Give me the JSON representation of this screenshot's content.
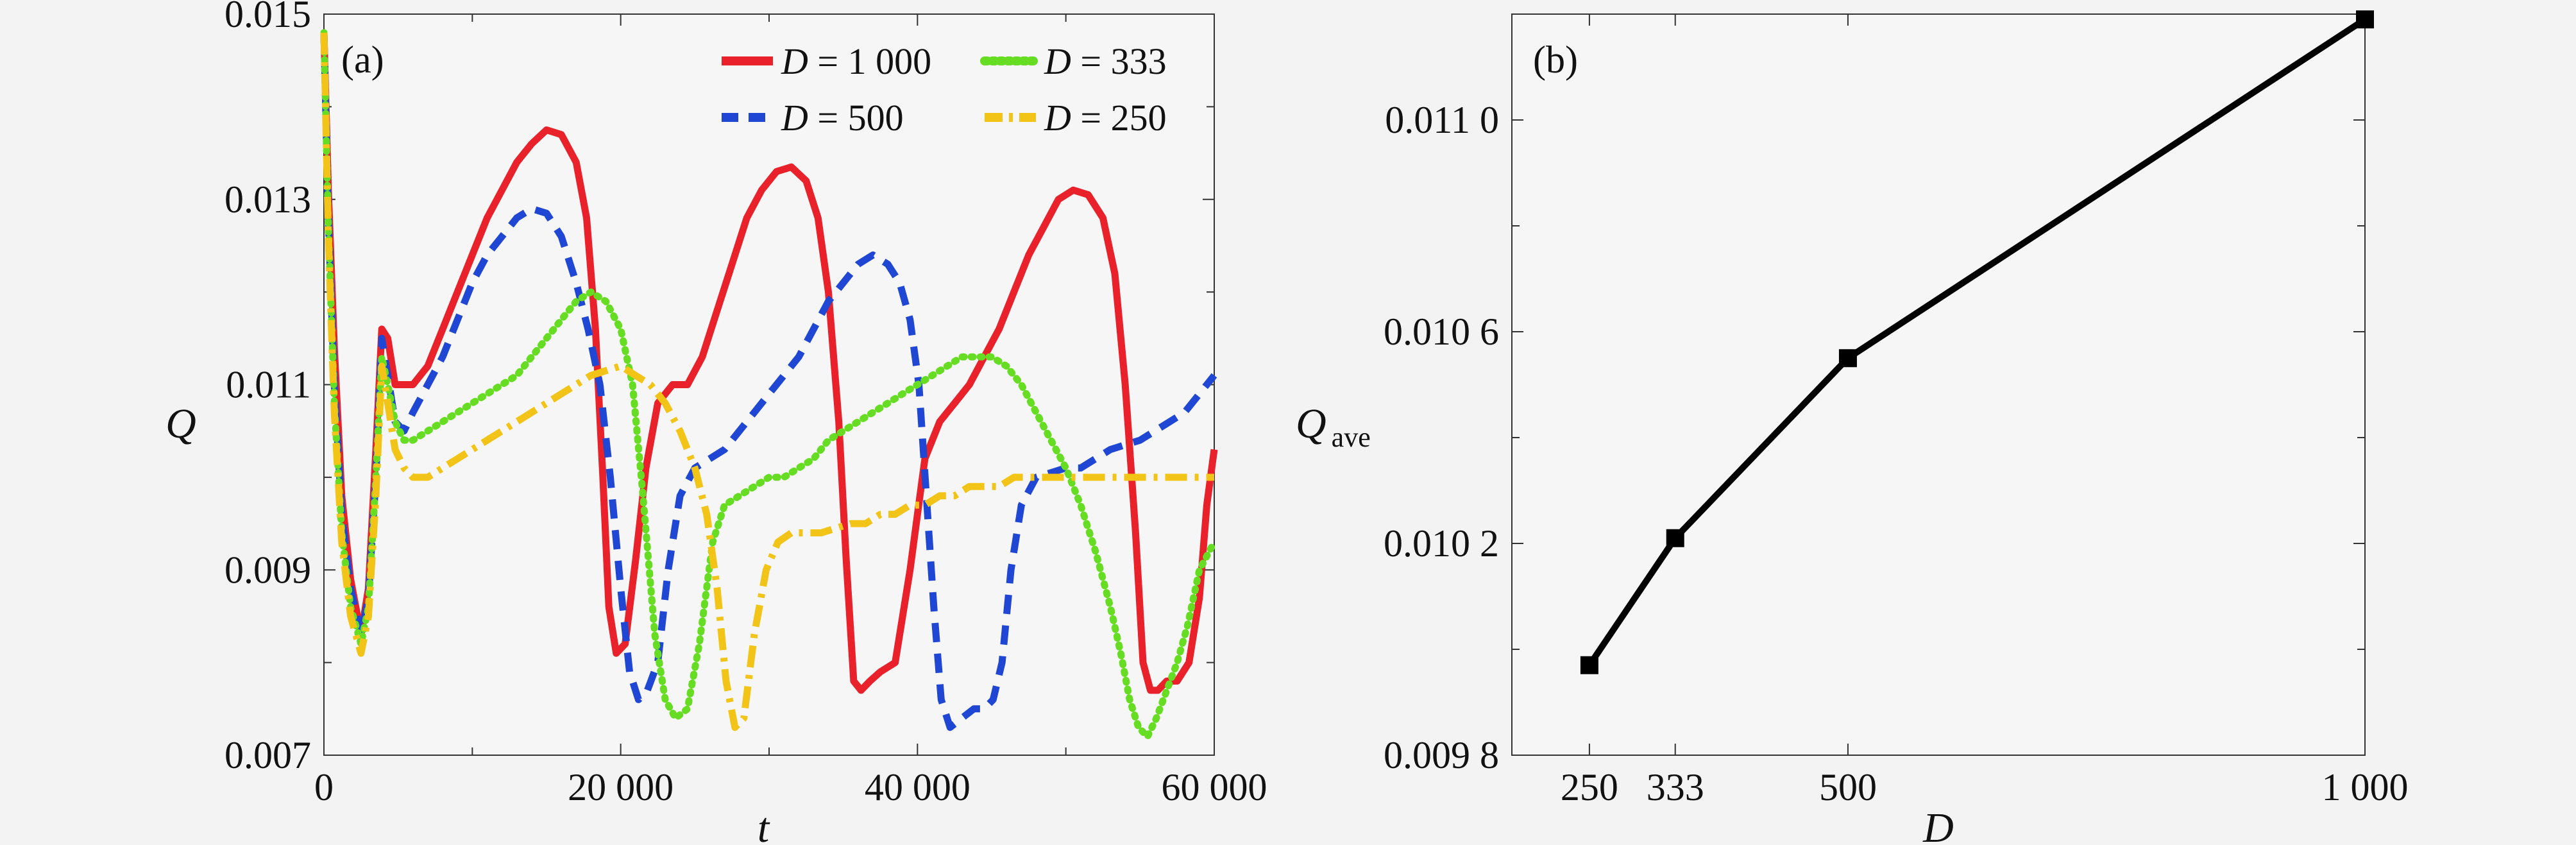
{
  "chart_data": [
    {
      "panel_label": "(a)",
      "type": "line",
      "xlabel": "t",
      "ylabel": "Q",
      "xlim": [
        0,
        60000
      ],
      "ylim": [
        0.007,
        0.015
      ],
      "x_ticks": [
        0,
        20000,
        40000,
        60000
      ],
      "x_tick_labels": [
        "0",
        "20 000",
        "40 000",
        "60 000"
      ],
      "y_ticks": [
        0.007,
        0.009,
        0.011,
        0.013,
        0.015
      ],
      "y_tick_labels": [
        "0.007",
        "0.009",
        "0.011",
        "0.013",
        "0.015"
      ],
      "legend_position": "top-right",
      "series": [
        {
          "name": "D = 1 000",
          "legend_text": "= 1 000",
          "color": "#e8212a",
          "dash": "solid",
          "x": [
            0,
            300,
            700,
            1200,
            1800,
            2500,
            3000,
            3500,
            3900,
            4300,
            4800,
            5400,
            6000,
            7000,
            8000,
            9000,
            10000,
            11000,
            12000,
            13000,
            14000,
            15000,
            16000,
            17000,
            17700,
            18300,
            18800,
            19200,
            19700,
            20300,
            21000,
            21700,
            22500,
            23500,
            24500,
            25500,
            26500,
            27500,
            28500,
            29500,
            30500,
            31500,
            32500,
            33300,
            34000,
            34700,
            35200,
            35700,
            36200,
            36800,
            37500,
            38500,
            39500,
            40500,
            41500,
            42500,
            43500,
            44500,
            45500,
            46500,
            47500,
            48500,
            49500,
            50500,
            51500,
            52500,
            53300,
            54000,
            54700,
            55200,
            55700,
            56200,
            56800,
            57500,
            58300,
            59000,
            59500,
            60000
          ],
          "y": [
            0.0148,
            0.0131,
            0.0114,
            0.0098,
            0.0089,
            0.0083,
            0.0088,
            0.0103,
            0.0116,
            0.0115,
            0.011,
            0.011,
            0.011,
            0.0112,
            0.0116,
            0.012,
            0.0124,
            0.0128,
            0.0131,
            0.0134,
            0.0136,
            0.01375,
            0.0137,
            0.0134,
            0.0128,
            0.0116,
            0.01,
            0.0086,
            0.0081,
            0.0082,
            0.0091,
            0.0101,
            0.0108,
            0.011,
            0.011,
            0.0113,
            0.0118,
            0.0123,
            0.0128,
            0.0131,
            0.0133,
            0.01335,
            0.0132,
            0.0128,
            0.012,
            0.0106,
            0.0091,
            0.0078,
            0.0077,
            0.0078,
            0.0079,
            0.008,
            0.009,
            0.0102,
            0.0106,
            0.0108,
            0.011,
            0.0113,
            0.0116,
            0.012,
            0.0124,
            0.0127,
            0.013,
            0.0131,
            0.01305,
            0.0128,
            0.0122,
            0.011,
            0.0094,
            0.008,
            0.0077,
            0.0077,
            0.0078,
            0.0078,
            0.008,
            0.0087,
            0.0097,
            0.0103
          ]
        },
        {
          "name": "D = 500",
          "legend_text": "= 500",
          "color": "#1f47d4",
          "dash": "dashed",
          "x": [
            0,
            300,
            700,
            1200,
            1800,
            2500,
            3000,
            3500,
            3900,
            4300,
            4800,
            5400,
            6000,
            7000,
            8000,
            9000,
            10000,
            11000,
            12000,
            13000,
            14000,
            15000,
            16000,
            17000,
            17800,
            18600,
            19300,
            20000,
            20600,
            21200,
            21800,
            22500,
            23200,
            24000,
            25000,
            26000,
            27000,
            28000,
            29000,
            30000,
            31000,
            32000,
            33000,
            34000,
            35000,
            36000,
            37000,
            38000,
            38800,
            39500,
            40100,
            40600,
            41100,
            41600,
            42200,
            43000,
            43800,
            44500,
            45100,
            45700,
            46300,
            47000,
            48000,
            49000,
            50000,
            51000,
            52000,
            53000,
            54000,
            55000,
            56000,
            57000,
            58000,
            59000,
            60000
          ],
          "y": [
            0.0148,
            0.0128,
            0.011,
            0.0096,
            0.0088,
            0.0083,
            0.0087,
            0.01,
            0.0115,
            0.0111,
            0.0106,
            0.0105,
            0.0107,
            0.011,
            0.0113,
            0.0117,
            0.0121,
            0.0124,
            0.0126,
            0.0128,
            0.0129,
            0.01285,
            0.0126,
            0.0121,
            0.0116,
            0.011,
            0.01,
            0.0088,
            0.0079,
            0.0076,
            0.0077,
            0.008,
            0.009,
            0.0098,
            0.0101,
            0.0102,
            0.0103,
            0.0105,
            0.0107,
            0.0109,
            0.0111,
            0.0113,
            0.0116,
            0.0119,
            0.0121,
            0.0123,
            0.0124,
            0.0123,
            0.0121,
            0.0117,
            0.011,
            0.0098,
            0.0086,
            0.0076,
            0.0073,
            0.0074,
            0.0075,
            0.0075,
            0.0076,
            0.008,
            0.009,
            0.0097,
            0.01,
            0.01005,
            0.0101,
            0.0101,
            0.0102,
            0.0103,
            0.01035,
            0.0104,
            0.0105,
            0.0106,
            0.0107,
            0.0109,
            0.0111
          ]
        },
        {
          "name": "D = 333",
          "legend_text": "= 333",
          "color": "#66dd22",
          "dash": "dotted",
          "x": [
            0,
            300,
            700,
            1200,
            1800,
            2500,
            3000,
            3500,
            3900,
            4300,
            4800,
            5400,
            6000,
            7000,
            8000,
            9000,
            10000,
            11000,
            12000,
            13000,
            14000,
            15000,
            16000,
            17000,
            18000,
            19000,
            20000,
            20800,
            21500,
            22300,
            23000,
            23700,
            24500,
            25300,
            26200,
            27000,
            28000,
            29000,
            30000,
            31000,
            32000,
            33000,
            34000,
            35000,
            36000,
            37000,
            38000,
            39000,
            40000,
            41000,
            42000,
            43000,
            44000,
            45000,
            46000,
            47000,
            48000,
            49000,
            50000,
            51000,
            52000,
            53000,
            53700,
            54300,
            54900,
            55500,
            56100,
            56800,
            57500,
            58200,
            59000,
            60000
          ],
          "y": [
            0.0148,
            0.0127,
            0.0108,
            0.0094,
            0.0086,
            0.0082,
            0.0086,
            0.01,
            0.0113,
            0.011,
            0.0106,
            0.0104,
            0.0104,
            0.0105,
            0.0106,
            0.0107,
            0.0108,
            0.0109,
            0.011,
            0.0111,
            0.0113,
            0.0115,
            0.0117,
            0.0119,
            0.012,
            0.0119,
            0.0116,
            0.011,
            0.0098,
            0.0083,
            0.0076,
            0.0074,
            0.0075,
            0.0082,
            0.0093,
            0.0097,
            0.0098,
            0.0099,
            0.01,
            0.01,
            0.0101,
            0.0102,
            0.0104,
            0.0105,
            0.0106,
            0.0107,
            0.0108,
            0.0109,
            0.011,
            0.0111,
            0.0112,
            0.0113,
            0.0113,
            0.0113,
            0.0112,
            0.011,
            0.0107,
            0.0104,
            0.0101,
            0.0097,
            0.0092,
            0.0086,
            0.0081,
            0.0076,
            0.0073,
            0.0072,
            0.0074,
            0.0077,
            0.008,
            0.0084,
            0.009,
            0.0093
          ]
        },
        {
          "name": "D = 250",
          "legend_text": "= 250",
          "color": "#f2c418",
          "dash": "dashdot",
          "x": [
            0,
            300,
            700,
            1200,
            1800,
            2500,
            3000,
            3500,
            3900,
            4300,
            4800,
            5400,
            6000,
            7000,
            8000,
            9000,
            10000,
            11000,
            12000,
            13000,
            14000,
            15000,
            16000,
            17000,
            18000,
            19000,
            20000,
            21000,
            22000,
            23000,
            24000,
            25000,
            25800,
            26500,
            27100,
            27700,
            28300,
            29000,
            29800,
            30600,
            31500,
            32500,
            33500,
            34500,
            35500,
            36500,
            37500,
            38500,
            39500,
            40500,
            41500,
            42500,
            43500,
            44500,
            45500,
            46500,
            47500,
            48500,
            49500,
            50500,
            51500,
            52500,
            53500,
            54500,
            55500,
            56500,
            57500,
            58500,
            59500,
            60000
          ],
          "y": [
            0.0148,
            0.0126,
            0.0107,
            0.0093,
            0.0085,
            0.0081,
            0.0085,
            0.0098,
            0.0112,
            0.0108,
            0.0103,
            0.0101,
            0.01,
            0.01,
            0.0101,
            0.0102,
            0.0103,
            0.0104,
            0.0105,
            0.0106,
            0.0107,
            0.0108,
            0.0109,
            0.011,
            0.0111,
            0.01115,
            0.0112,
            0.0111,
            0.011,
            0.0108,
            0.0105,
            0.0101,
            0.0096,
            0.0088,
            0.0078,
            0.0073,
            0.0074,
            0.0083,
            0.009,
            0.0093,
            0.0094,
            0.0094,
            0.0094,
            0.00945,
            0.0095,
            0.0095,
            0.0096,
            0.0096,
            0.0097,
            0.0097,
            0.0098,
            0.0098,
            0.0099,
            0.0099,
            0.0099,
            0.01,
            0.01,
            0.01,
            0.01,
            0.01,
            0.01,
            0.01,
            0.01,
            0.01,
            0.01,
            0.01,
            0.01,
            0.01,
            0.01,
            0.01
          ]
        }
      ]
    },
    {
      "panel_label": "(b)",
      "type": "line",
      "xlabel": "D",
      "ylabel": "Q",
      "ylabel_subscript": "ave",
      "xlim": [
        175,
        1000
      ],
      "ylim": [
        0.0098,
        0.0112
      ],
      "x_ticks": [
        250,
        333,
        500,
        1000
      ],
      "x_tick_labels": [
        "250",
        "333",
        "500",
        "1 000"
      ],
      "y_ticks": [
        0.0098,
        0.0102,
        0.0106,
        0.011
      ],
      "y_tick_labels": [
        "0.009 8",
        "0.010 2",
        "0.010 6",
        "0.011 0"
      ],
      "series": [
        {
          "color": "#000000",
          "marker": "square",
          "x": [
            250,
            333,
            500,
            1000
          ],
          "y": [
            0.00997,
            0.01021,
            0.01055,
            0.01119
          ]
        }
      ]
    }
  ]
}
